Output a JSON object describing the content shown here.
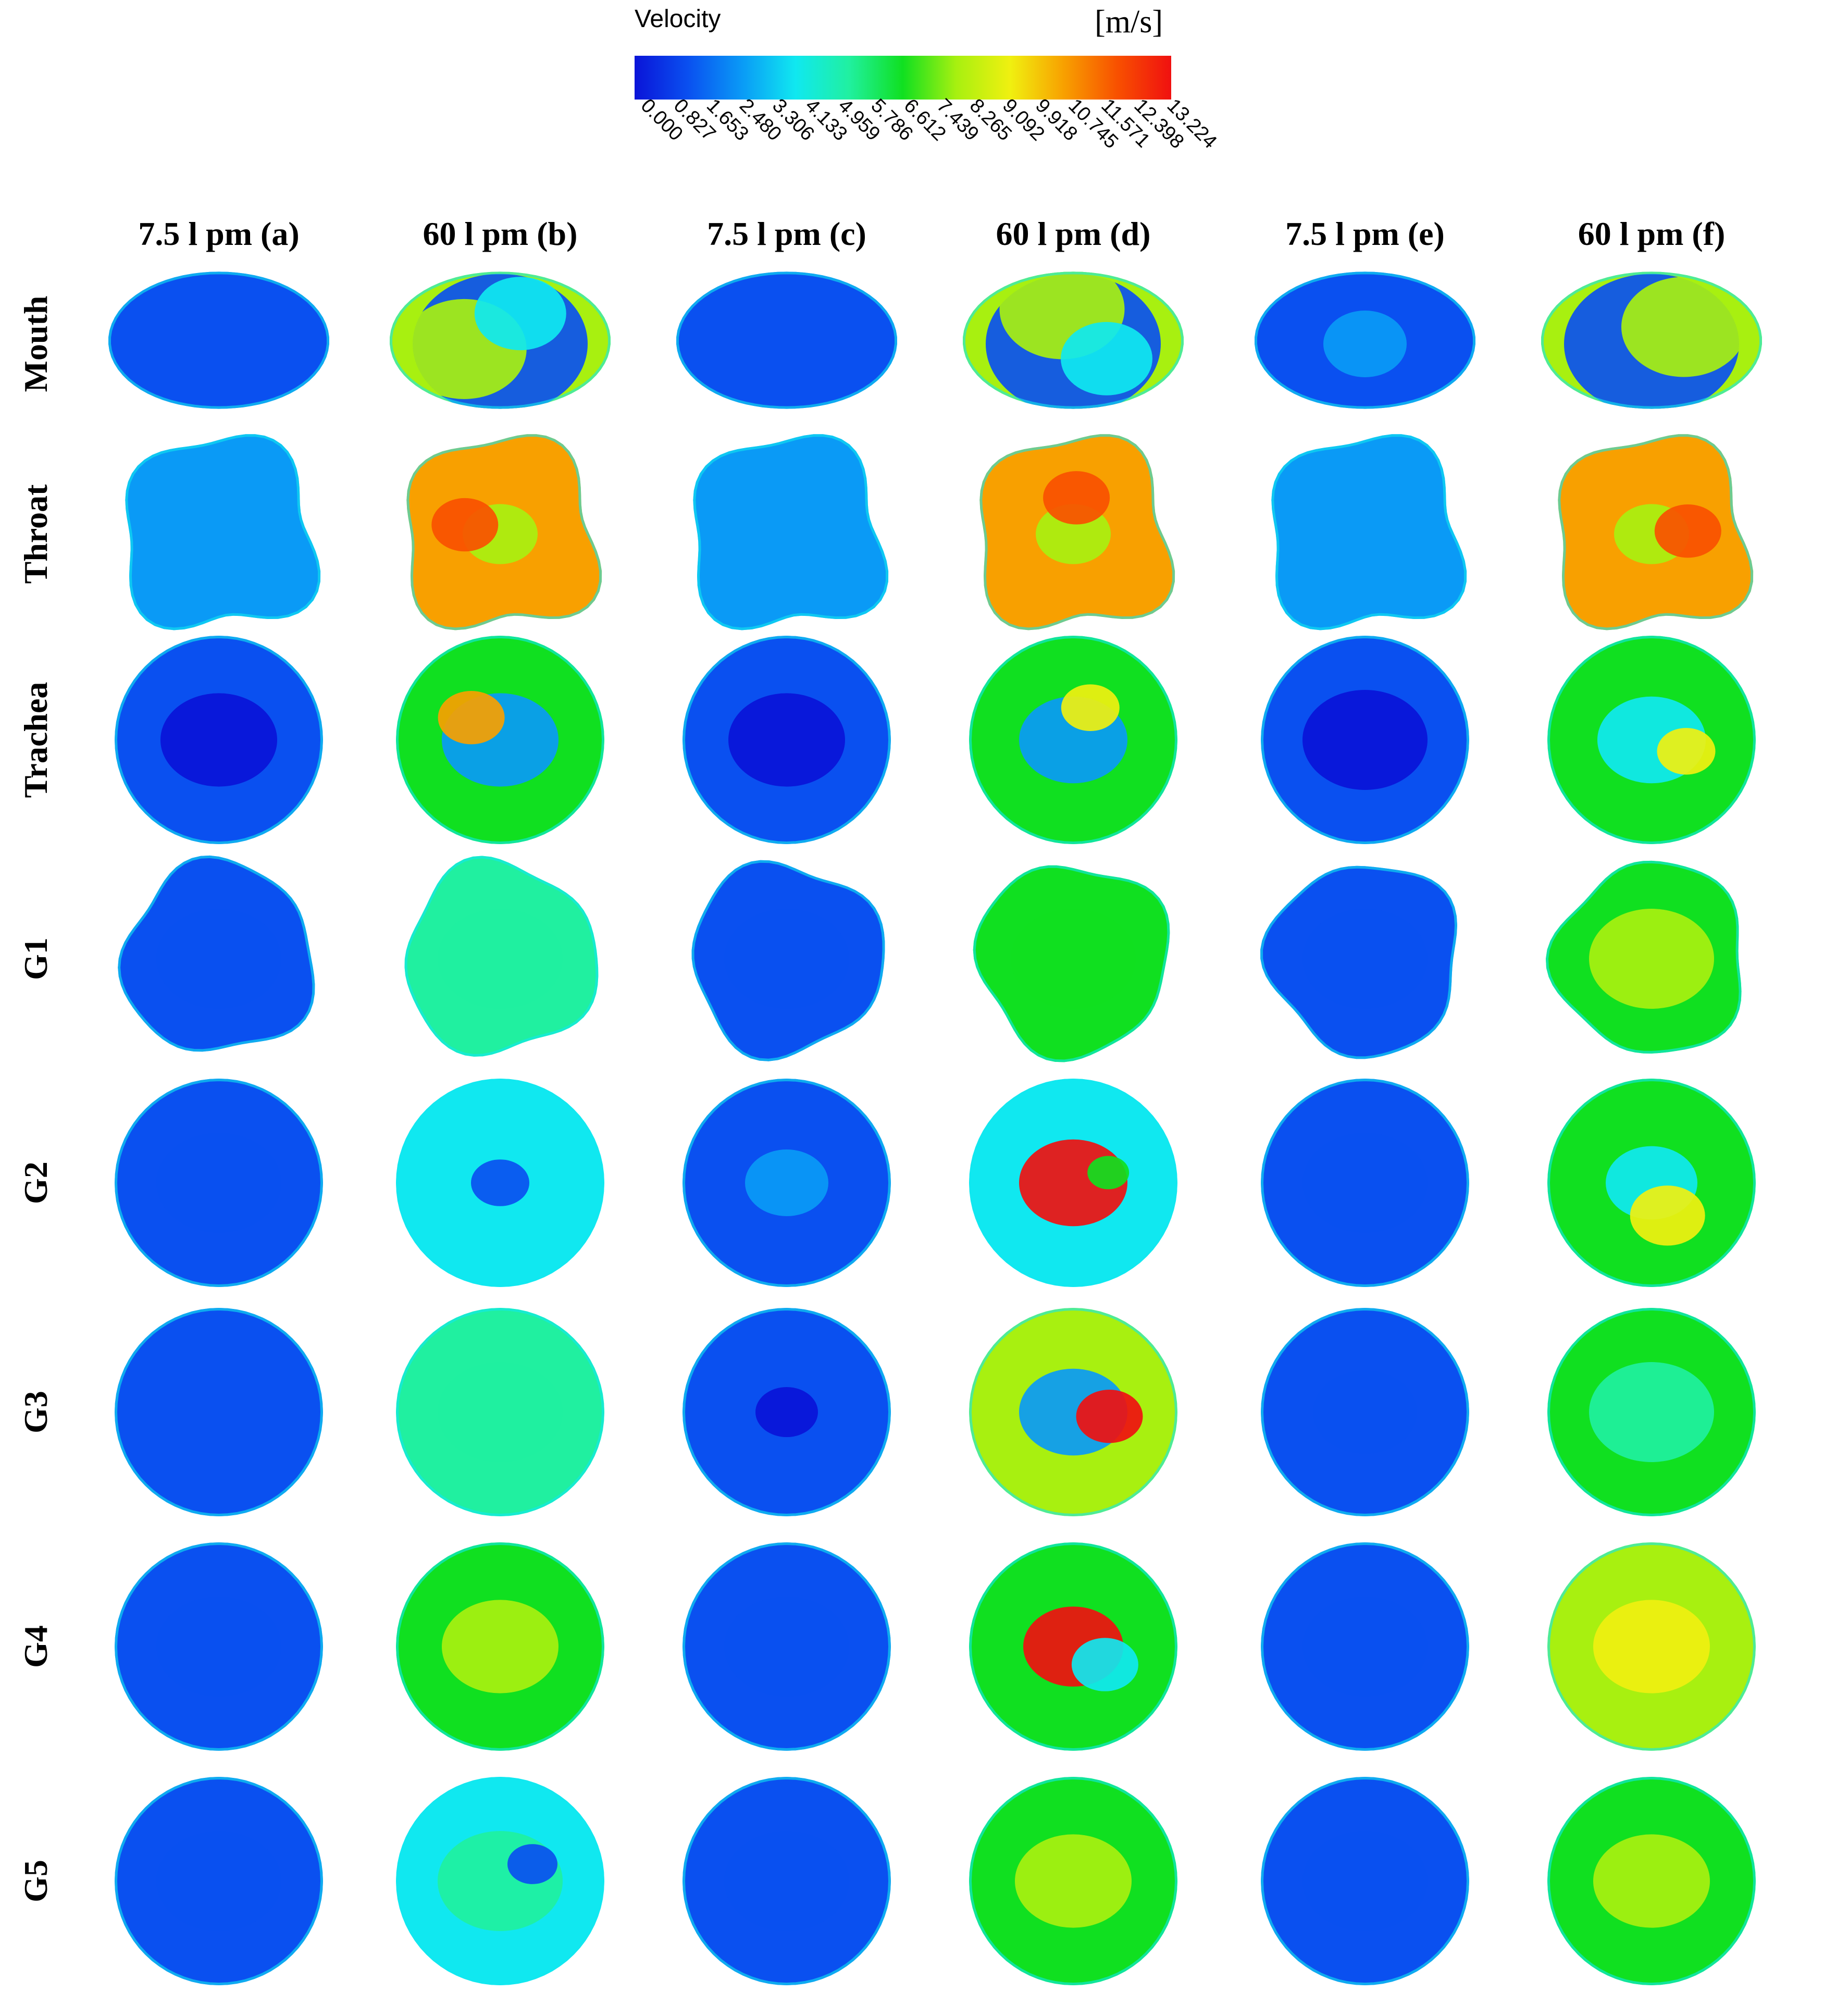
{
  "legend": {
    "title": "Velocity",
    "unit": "[m/s]",
    "ticks": [
      "0.000",
      "0.827",
      "1.653",
      "2.480",
      "3.306",
      "4.133",
      "4.959",
      "5.786",
      "6.612",
      "7.439",
      "8.265",
      "9.092",
      "9.918",
      "10.745",
      "11.571",
      "12.398",
      "13.224"
    ],
    "range": [
      0,
      13.224
    ]
  },
  "columns": [
    {
      "label": "7.5 l pm (a)"
    },
    {
      "label": "60 l pm (b)"
    },
    {
      "label": "7.5 l pm (c)"
    },
    {
      "label": "60 l pm (d)"
    },
    {
      "label": "7.5 l pm (e)"
    },
    {
      "label": "60 l pm (f)"
    }
  ],
  "rows": [
    {
      "label": "Mouth",
      "shape": "mouth"
    },
    {
      "label": "Throat",
      "shape": "throat"
    },
    {
      "label": "Trachea",
      "shape": "circle"
    },
    {
      "label": "G1",
      "shape": "lobed"
    },
    {
      "label": "G2",
      "shape": "circle"
    },
    {
      "label": "G3",
      "shape": "circle"
    },
    {
      "label": "G4",
      "shape": "circle"
    },
    {
      "label": "G5",
      "shape": "circle"
    }
  ],
  "colormap": [
    "#0a14d8",
    "#0a50f0",
    "#0a9af6",
    "#10e8f0",
    "#20f0a0",
    "#10e020",
    "#a8f010",
    "#f0f010",
    "#f8a000",
    "#f85000",
    "#f01010"
  ],
  "cross_sections": [
    [
      {
        "base": 0.06,
        "blobs": []
      },
      {
        "base": 0.55,
        "blobs": [
          {
            "value": 0.1,
            "r": 0.42
          },
          {
            "value": 0.6,
            "r": 0.3
          },
          {
            "value": 0.25,
            "r": 0.22
          }
        ]
      },
      {
        "base": 0.06,
        "blobs": []
      },
      {
        "base": 0.55,
        "blobs": [
          {
            "value": 0.1,
            "r": 0.42
          },
          {
            "value": 0.62,
            "r": 0.3
          },
          {
            "value": 0.25,
            "r": 0.22
          }
        ]
      },
      {
        "base": 0.12,
        "blobs": [
          {
            "value": 0.18,
            "r": 0.2
          }
        ]
      },
      {
        "base": 0.55,
        "blobs": [
          {
            "value": 0.1,
            "r": 0.42
          },
          {
            "value": 0.58,
            "r": 0.3
          }
        ]
      }
    ],
    [
      {
        "base": 0.15,
        "blobs": []
      },
      {
        "base": 0.8,
        "blobs": [
          {
            "value": 0.55,
            "r": 0.18
          },
          {
            "value": 0.9,
            "r": 0.16
          }
        ]
      },
      {
        "base": 0.15,
        "blobs": []
      },
      {
        "base": 0.8,
        "blobs": [
          {
            "value": 0.55,
            "r": 0.18
          },
          {
            "value": 0.92,
            "r": 0.16
          }
        ]
      },
      {
        "base": 0.15,
        "blobs": []
      },
      {
        "base": 0.8,
        "blobs": [
          {
            "value": 0.55,
            "r": 0.18
          },
          {
            "value": 0.88,
            "r": 0.16
          }
        ]
      }
    ],
    [
      {
        "base": 0.12,
        "blobs": [
          {
            "value": 0.04,
            "r": 0.28
          }
        ]
      },
      {
        "base": 0.5,
        "blobs": [
          {
            "value": 0.2,
            "r": 0.28
          },
          {
            "value": 0.75,
            "r": 0.16
          }
        ]
      },
      {
        "base": 0.1,
        "blobs": [
          {
            "value": 0.04,
            "r": 0.28
          }
        ]
      },
      {
        "base": 0.48,
        "blobs": [
          {
            "value": 0.18,
            "r": 0.26
          },
          {
            "value": 0.7,
            "r": 0.14
          }
        ]
      },
      {
        "base": 0.1,
        "blobs": [
          {
            "value": 0.04,
            "r": 0.3
          }
        ]
      },
      {
        "base": 0.5,
        "blobs": [
          {
            "value": 0.25,
            "r": 0.26
          },
          {
            "value": 0.72,
            "r": 0.14
          }
        ]
      }
    ],
    [
      {
        "base": 0.1,
        "blobs": [
          {
            "value": 0.14,
            "r": 0.3
          }
        ]
      },
      {
        "base": 0.38,
        "blobs": [
          {
            "value": 0.4,
            "r": 0.3
          }
        ]
      },
      {
        "base": 0.1,
        "blobs": [
          {
            "value": 0.13,
            "r": 0.3
          }
        ]
      },
      {
        "base": 0.5,
        "blobs": [
          {
            "value": 0.52,
            "r": 0.3
          }
        ]
      },
      {
        "base": 0.1,
        "blobs": [
          {
            "value": 0.14,
            "r": 0.3
          }
        ]
      },
      {
        "base": 0.5,
        "blobs": [
          {
            "value": 0.6,
            "r": 0.3
          }
        ]
      }
    ],
    [
      {
        "base": 0.08,
        "blobs": [
          {
            "value": 0.12,
            "r": 0.3
          }
        ]
      },
      {
        "base": 0.34,
        "blobs": [
          {
            "value": 0.08,
            "r": 0.14
          }
        ]
      },
      {
        "base": 0.05,
        "blobs": [
          {
            "value": 0.2,
            "r": 0.2
          }
        ]
      },
      {
        "base": 0.25,
        "blobs": [
          {
            "value": 0.98,
            "r": 0.26
          },
          {
            "value": 0.5,
            "r": 0.1
          }
        ]
      },
      {
        "base": 0.08,
        "blobs": [
          {
            "value": 0.12,
            "r": 0.3
          }
        ]
      },
      {
        "base": 0.5,
        "blobs": [
          {
            "value": 0.3,
            "r": 0.22
          },
          {
            "value": 0.65,
            "r": 0.18
          }
        ]
      }
    ],
    [
      {
        "base": 0.08,
        "blobs": []
      },
      {
        "base": 0.35,
        "blobs": [
          {
            "value": 0.36,
            "r": 0.3
          }
        ]
      },
      {
        "base": 0.08,
        "blobs": [
          {
            "value": 0.03,
            "r": 0.15
          }
        ]
      },
      {
        "base": 0.55,
        "blobs": [
          {
            "value": 0.2,
            "r": 0.26
          },
          {
            "value": 0.95,
            "r": 0.16
          }
        ]
      },
      {
        "base": 0.08,
        "blobs": [
          {
            "value": 0.12,
            "r": 0.25
          }
        ]
      },
      {
        "base": 0.5,
        "blobs": [
          {
            "value": 0.42,
            "r": 0.3
          }
        ]
      }
    ],
    [
      {
        "base": 0.08,
        "blobs": [
          {
            "value": 0.14,
            "r": 0.3
          }
        ]
      },
      {
        "base": 0.45,
        "blobs": [
          {
            "value": 0.62,
            "r": 0.28
          }
        ]
      },
      {
        "base": 0.08,
        "blobs": [
          {
            "value": 0.12,
            "r": 0.3
          }
        ]
      },
      {
        "base": 0.5,
        "blobs": [
          {
            "value": 0.98,
            "r": 0.24
          },
          {
            "value": 0.25,
            "r": 0.16
          }
        ]
      },
      {
        "base": 0.08,
        "blobs": [
          {
            "value": 0.12,
            "r": 0.3
          }
        ]
      },
      {
        "base": 0.62,
        "blobs": [
          {
            "value": 0.72,
            "r": 0.28
          }
        ]
      }
    ],
    [
      {
        "base": 0.08,
        "blobs": [
          {
            "value": 0.12,
            "r": 0.3
          }
        ]
      },
      {
        "base": 0.3,
        "blobs": [
          {
            "value": 0.36,
            "r": 0.3
          },
          {
            "value": 0.1,
            "r": 0.12
          }
        ]
      },
      {
        "base": 0.08,
        "blobs": [
          {
            "value": 0.12,
            "r": 0.3
          }
        ]
      },
      {
        "base": 0.5,
        "blobs": [
          {
            "value": 0.6,
            "r": 0.28
          }
        ]
      },
      {
        "base": 0.08,
        "blobs": [
          {
            "value": 0.12,
            "r": 0.3
          }
        ]
      },
      {
        "base": 0.45,
        "blobs": [
          {
            "value": 0.55,
            "r": 0.28
          }
        ]
      }
    ]
  ]
}
